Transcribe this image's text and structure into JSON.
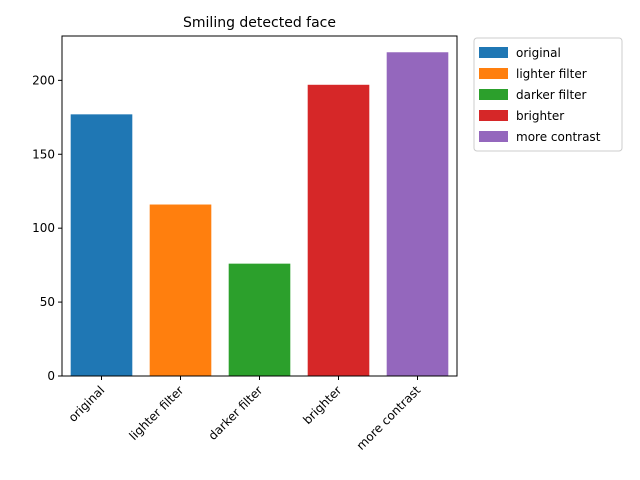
{
  "chart_data": {
    "type": "bar",
    "title": "Smiling detected face",
    "xlabel": "",
    "ylabel": "",
    "categories": [
      "original",
      "lighter filter",
      "darker filter",
      "brighter",
      "more contrast"
    ],
    "values": [
      177,
      116,
      76,
      197,
      219
    ],
    "colors": [
      "#1f77b4",
      "#ff7f0e",
      "#2ca02c",
      "#d62728",
      "#9467bd"
    ],
    "ylim": [
      0,
      230
    ],
    "yticks": [
      0,
      50,
      100,
      150,
      200
    ],
    "grid": false,
    "legend": {
      "placement": "outside-top-right",
      "entries": [
        "original",
        "lighter filter",
        "darker filter",
        "brighter",
        "more contrast"
      ]
    }
  }
}
